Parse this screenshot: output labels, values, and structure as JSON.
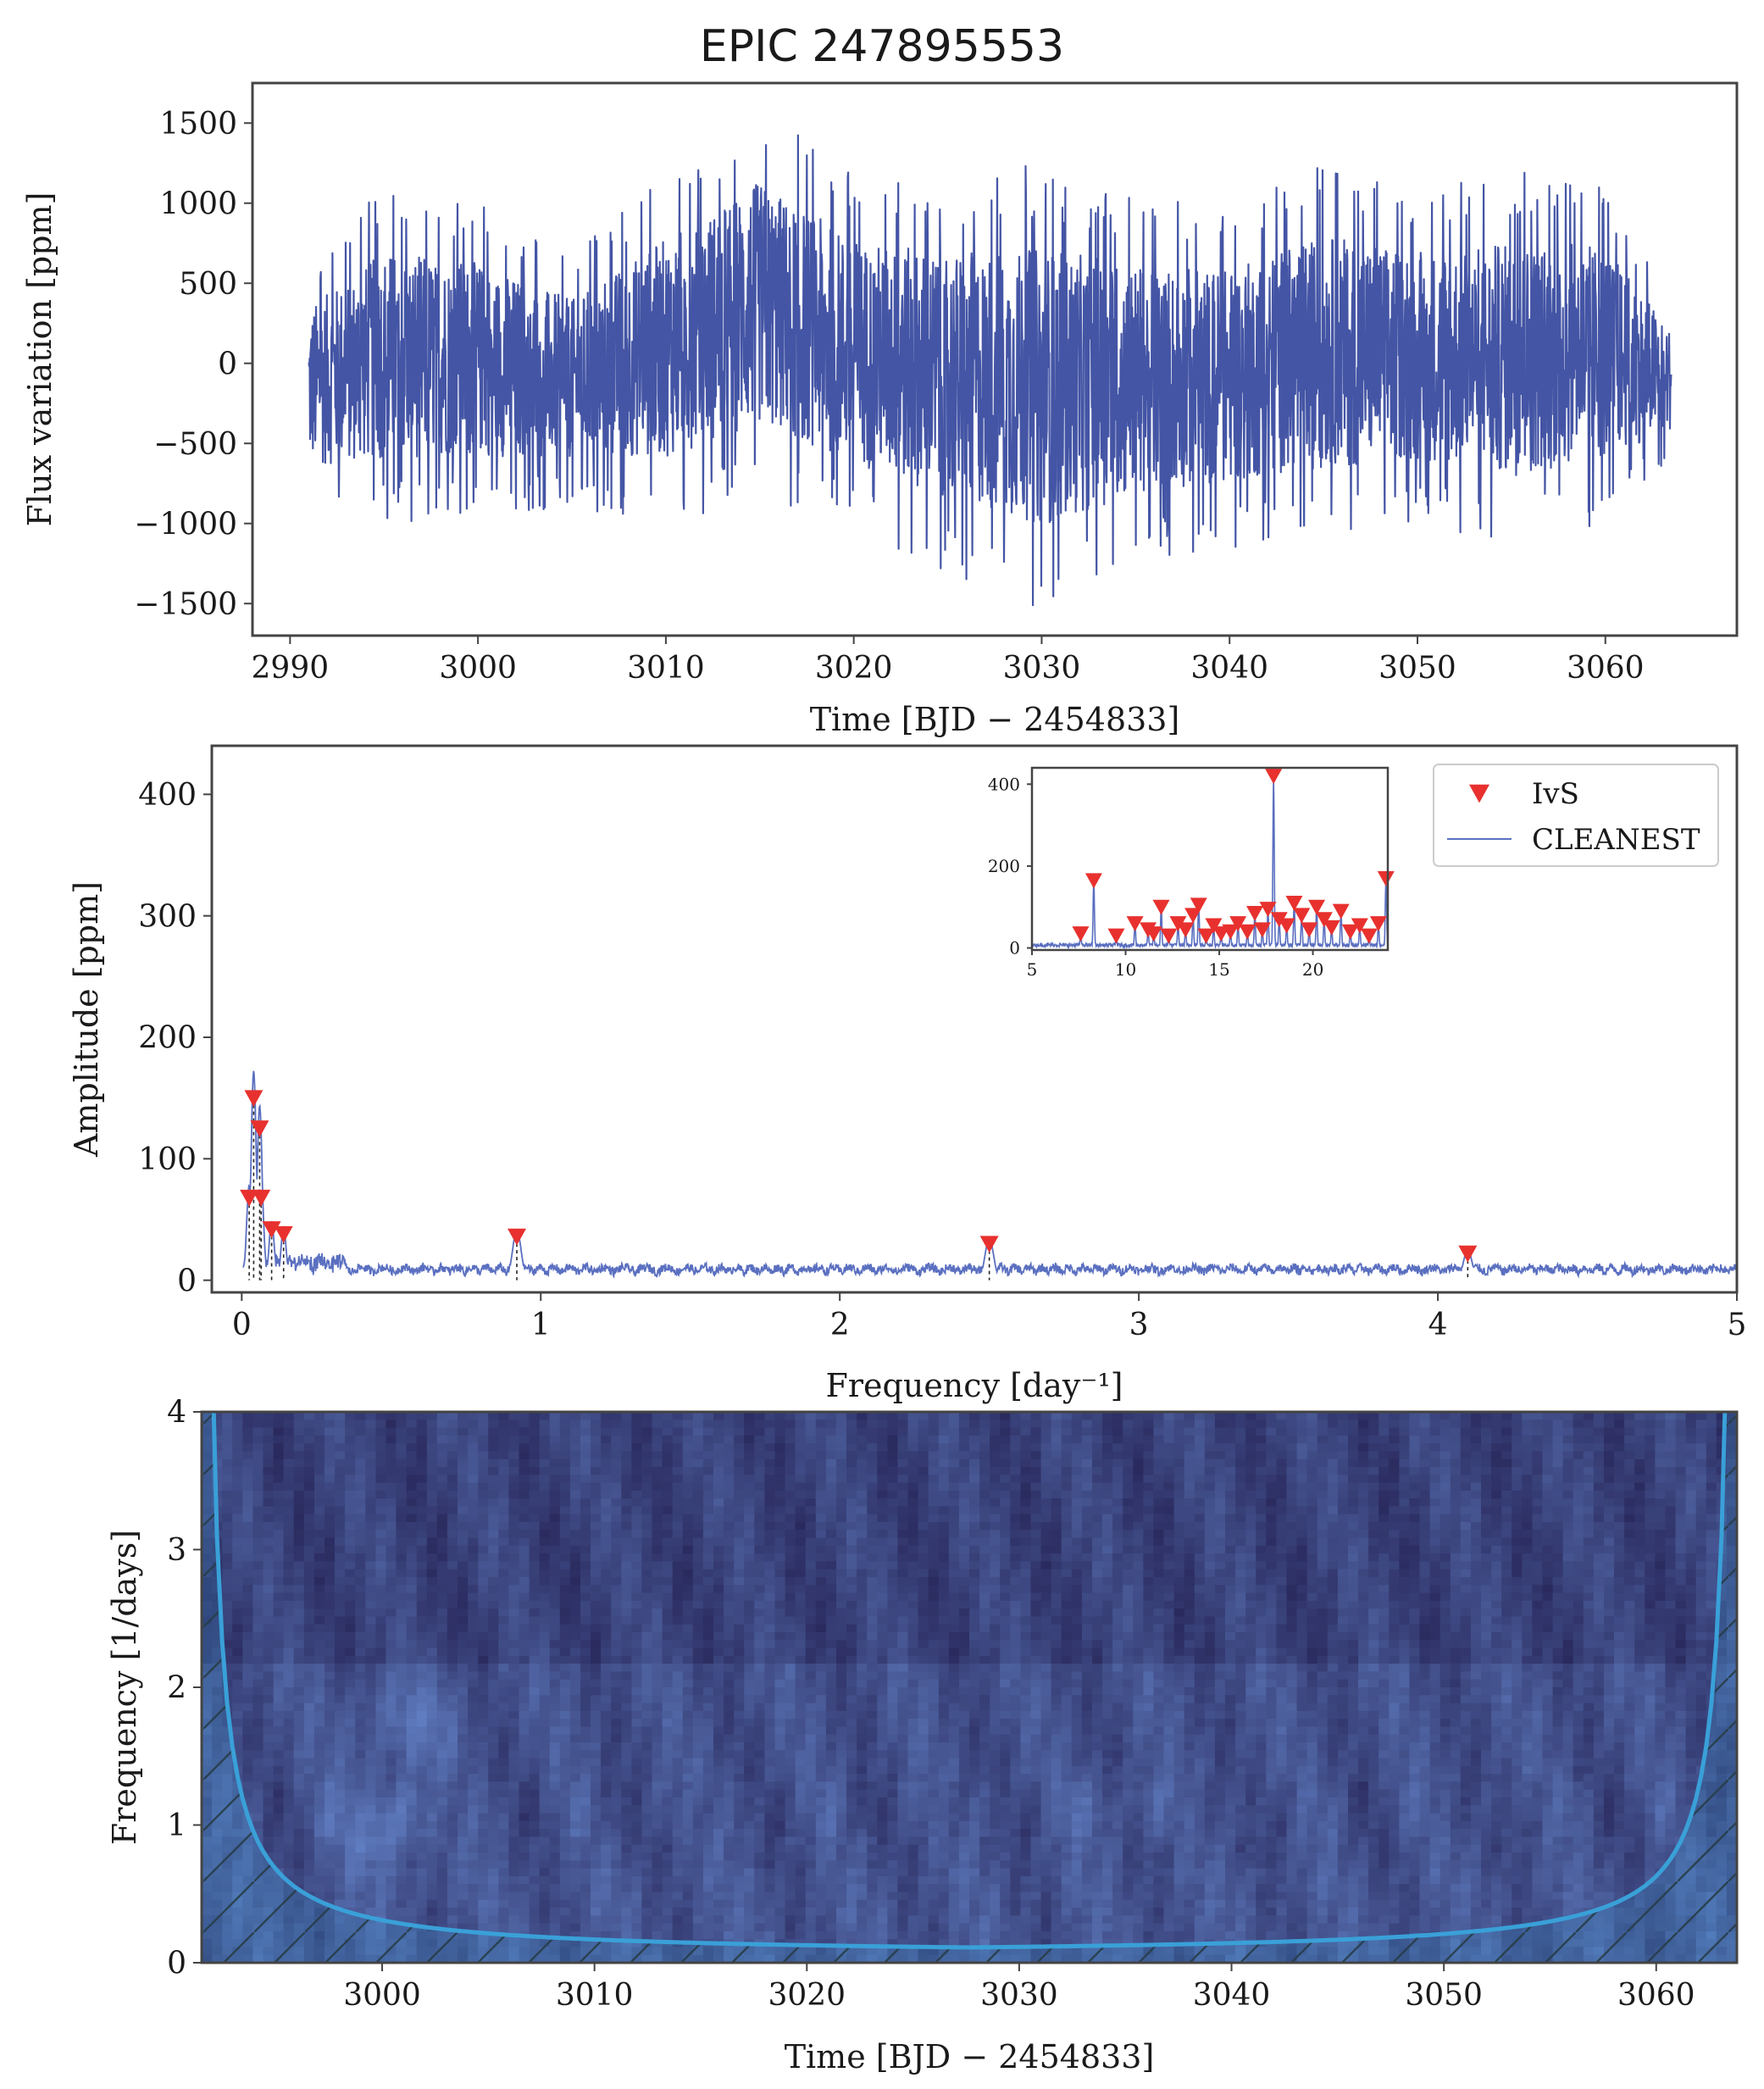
{
  "title": "EPIC 247895553",
  "colors": {
    "light_curve": "#4455a5",
    "periodogram": "#5a6fc0",
    "marker": "#e8312e",
    "cone": "#3aa0d8",
    "wavelet_low": "#2a2a5e",
    "wavelet_high": "#6b8fd6"
  },
  "chart_data": [
    {
      "type": "line",
      "name": "light-curve",
      "xlabel": "Time [BJD − 2454833]",
      "ylabel": "Flux variation [ppm]",
      "xlim": [
        2988,
        3067
      ],
      "ylim": [
        -1700,
        1750
      ],
      "xticks": [
        2990,
        3000,
        3010,
        3020,
        3030,
        3040,
        3050,
        3060
      ],
      "xtick_labels": [
        "2990",
        "3000",
        "3010",
        "3020",
        "3030",
        "3040",
        "3050",
        "3060"
      ],
      "yticks": [
        -1500,
        -1000,
        -500,
        0,
        500,
        1000,
        1500
      ],
      "ytick_labels": [
        "−1500",
        "−1000",
        "−500",
        "0",
        "500",
        "1000",
        "1500"
      ],
      "series": [
        {
          "time_range": [
            2991,
            3063.5
          ],
          "envelope_x": [
            2991,
            2995,
            3000,
            3005,
            3010,
            3015,
            3020,
            3025,
            3030,
            3035,
            3040,
            3045,
            3050,
            3055,
            3060,
            3063.5
          ],
          "envelope_upper": [
            650,
            1100,
            1000,
            700,
            1200,
            1600,
            1200,
            1150,
            1250,
            1050,
            1000,
            1250,
            1100,
            1200,
            1150,
            400
          ],
          "envelope_lower": [
            -950,
            -1000,
            -950,
            -900,
            -1000,
            -850,
            -1050,
            -1300,
            -1550,
            -1250,
            -1150,
            -1100,
            -1000,
            -1150,
            -1000,
            -600
          ]
        }
      ]
    },
    {
      "type": "line",
      "name": "periodogram",
      "xlabel": "Frequency [day⁻¹]",
      "ylabel": "Amplitude [ppm]",
      "xlim": [
        -0.1,
        5
      ],
      "ylim": [
        -10,
        440
      ],
      "xticks": [
        0,
        1,
        2,
        3,
        4,
        5
      ],
      "xtick_labels": [
        "0",
        "1",
        "2",
        "3",
        "4",
        "5"
      ],
      "yticks": [
        0,
        100,
        200,
        300,
        400
      ],
      "ytick_labels": [
        "0",
        "100",
        "200",
        "300",
        "400"
      ],
      "legend": {
        "position": "top-right",
        "entries": [
          {
            "label": "IvS",
            "kind": "marker"
          },
          {
            "label": "CLEANEST",
            "kind": "line"
          }
        ]
      },
      "ivs_peaks": [
        {
          "x": 0.025,
          "y": 68
        },
        {
          "x": 0.04,
          "y": 150
        },
        {
          "x": 0.06,
          "y": 125
        },
        {
          "x": 0.065,
          "y": 68
        },
        {
          "x": 0.1,
          "y": 42
        },
        {
          "x": 0.14,
          "y": 38
        },
        {
          "x": 0.92,
          "y": 36
        },
        {
          "x": 2.5,
          "y": 30
        },
        {
          "x": 4.1,
          "y": 22
        }
      ],
      "inset": {
        "xlim": [
          5,
          24
        ],
        "ylim": [
          -5,
          440
        ],
        "xticks": [
          5,
          10,
          15,
          20
        ],
        "xtick_labels": [
          "5",
          "10",
          "15",
          "20"
        ],
        "yticks": [
          0,
          200,
          400
        ],
        "ytick_labels": [
          "0",
          "200",
          "400"
        ],
        "peaks": [
          {
            "x": 7.6,
            "y": 35
          },
          {
            "x": 8.3,
            "y": 165
          },
          {
            "x": 9.5,
            "y": 30
          },
          {
            "x": 10.5,
            "y": 60
          },
          {
            "x": 11.2,
            "y": 45
          },
          {
            "x": 11.5,
            "y": 35
          },
          {
            "x": 11.9,
            "y": 100
          },
          {
            "x": 12.3,
            "y": 30
          },
          {
            "x": 12.8,
            "y": 60
          },
          {
            "x": 13.2,
            "y": 45
          },
          {
            "x": 13.6,
            "y": 80
          },
          {
            "x": 13.9,
            "y": 105
          },
          {
            "x": 14.3,
            "y": 30
          },
          {
            "x": 14.7,
            "y": 55
          },
          {
            "x": 15.1,
            "y": 35
          },
          {
            "x": 15.6,
            "y": 40
          },
          {
            "x": 16.0,
            "y": 60
          },
          {
            "x": 16.5,
            "y": 40
          },
          {
            "x": 16.9,
            "y": 85
          },
          {
            "x": 17.3,
            "y": 45
          },
          {
            "x": 17.6,
            "y": 95
          },
          {
            "x": 17.9,
            "y": 420
          },
          {
            "x": 18.2,
            "y": 70
          },
          {
            "x": 18.6,
            "y": 55
          },
          {
            "x": 19.0,
            "y": 110
          },
          {
            "x": 19.4,
            "y": 80
          },
          {
            "x": 19.8,
            "y": 45
          },
          {
            "x": 20.2,
            "y": 100
          },
          {
            "x": 20.6,
            "y": 70
          },
          {
            "x": 21.0,
            "y": 50
          },
          {
            "x": 21.5,
            "y": 90
          },
          {
            "x": 22.0,
            "y": 40
          },
          {
            "x": 22.5,
            "y": 55
          },
          {
            "x": 23.0,
            "y": 30
          },
          {
            "x": 23.5,
            "y": 60
          },
          {
            "x": 23.9,
            "y": 170
          }
        ]
      }
    },
    {
      "type": "heatmap",
      "name": "wavelet",
      "xlabel": "Time [BJD − 2454833]",
      "ylabel": "Frequency [1/days]",
      "xlim": [
        2991.5,
        3063.8
      ],
      "ylim": [
        0,
        4
      ],
      "xticks": [
        3000,
        3010,
        3020,
        3030,
        3040,
        3050,
        3060
      ],
      "xtick_labels": [
        "3000",
        "3010",
        "3020",
        "3030",
        "3040",
        "3050",
        "3060"
      ],
      "yticks": [
        0,
        1,
        2,
        3,
        4
      ],
      "ytick_labels": [
        "0",
        "1",
        "2",
        "3",
        "4"
      ]
    }
  ]
}
